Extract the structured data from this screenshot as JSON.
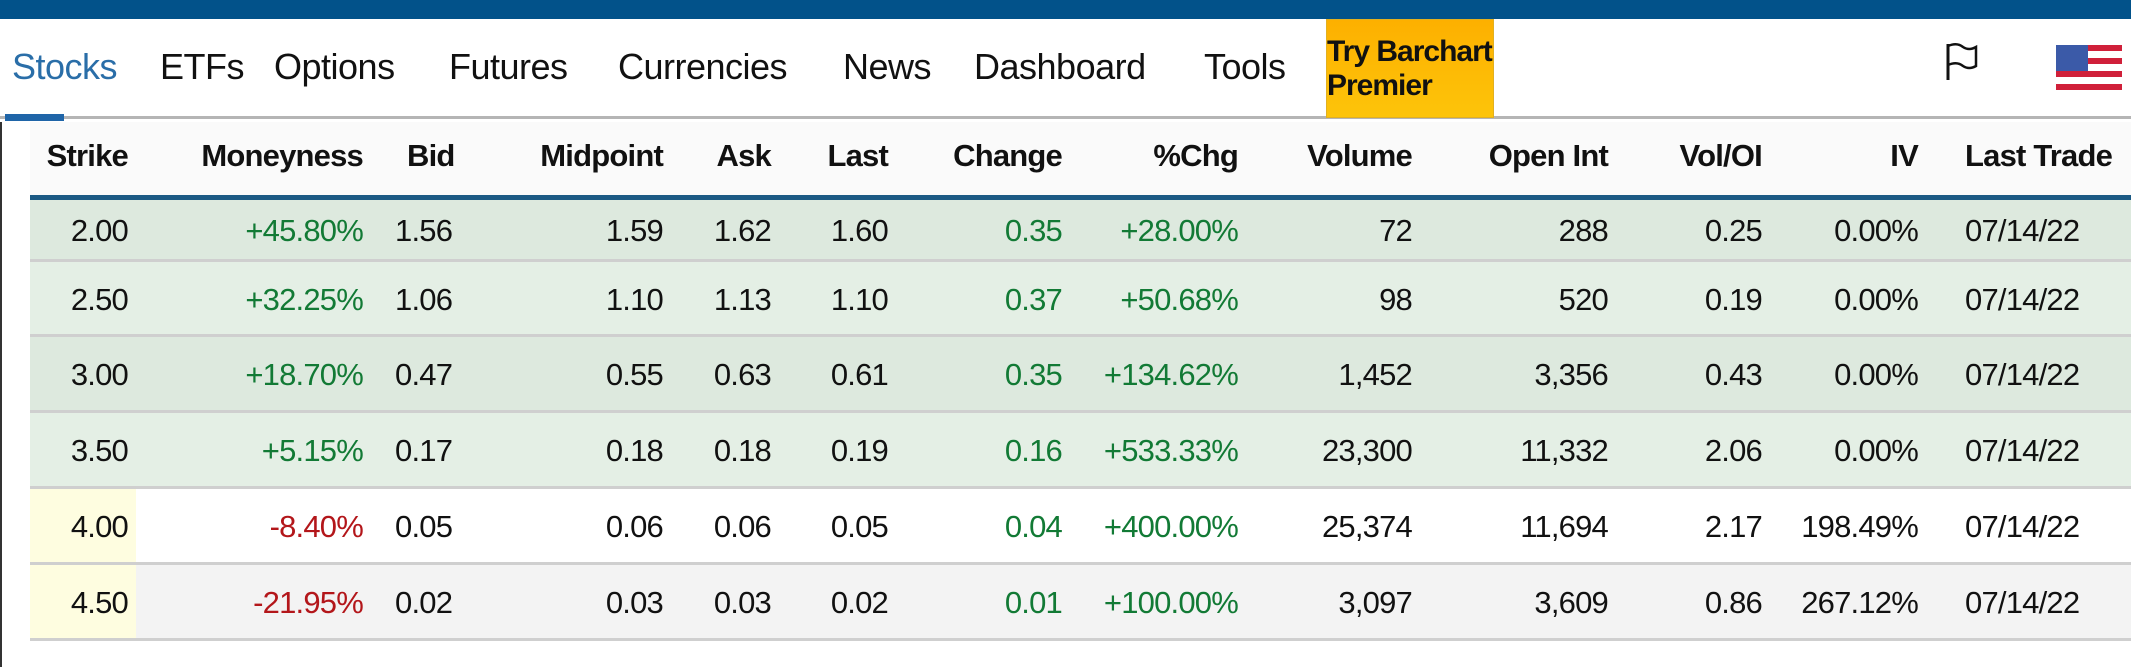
{
  "nav": {
    "items": [
      "Stocks",
      "ETFs",
      "Options",
      "Futures",
      "Currencies",
      "News",
      "Dashboard",
      "Tools"
    ],
    "active": "Stocks",
    "premium_label": "Try Barchart Premier"
  },
  "icons": {
    "flag": "flag-icon",
    "language": "us-flag-icon"
  },
  "colors": {
    "topbar": "#02528a",
    "premium": "#fdb800",
    "positive": "#127a35",
    "negative": "#b3161a",
    "itm_row": "#dde9de",
    "itm_row_alt": "#e4efe5",
    "strike_otm": "#fefde0"
  },
  "table": {
    "headers": [
      "Strike",
      "Moneyness",
      "Bid",
      "Midpoint",
      "Ask",
      "Last",
      "Change",
      "%Chg",
      "Volume",
      "Open Int",
      "Vol/OI",
      "IV",
      "Last Trade"
    ],
    "rows": [
      [
        "2.00",
        "+45.80%",
        "1.56",
        "1.59",
        "1.62",
        "1.60",
        "0.35",
        "+28.00%",
        "72",
        "288",
        "0.25",
        "0.00%",
        "07/14/22"
      ],
      [
        "2.50",
        "+32.25%",
        "1.06",
        "1.10",
        "1.13",
        "1.10",
        "0.37",
        "+50.68%",
        "98",
        "520",
        "0.19",
        "0.00%",
        "07/14/22"
      ],
      [
        "3.00",
        "+18.70%",
        "0.47",
        "0.55",
        "0.63",
        "0.61",
        "0.35",
        "+134.62%",
        "1,452",
        "3,356",
        "0.43",
        "0.00%",
        "07/14/22"
      ],
      [
        "3.50",
        "+5.15%",
        "0.17",
        "0.18",
        "0.18",
        "0.19",
        "0.16",
        "+533.33%",
        "23,300",
        "11,332",
        "2.06",
        "0.00%",
        "07/14/22"
      ],
      [
        "4.00",
        "-8.40%",
        "0.05",
        "0.06",
        "0.06",
        "0.05",
        "0.04",
        "+400.00%",
        "25,374",
        "11,694",
        "2.17",
        "198.49%",
        "07/14/22"
      ],
      [
        "4.50",
        "-21.95%",
        "0.02",
        "0.03",
        "0.03",
        "0.02",
        "0.01",
        "+100.00%",
        "3,097",
        "3,609",
        "0.86",
        "267.12%",
        "07/14/22"
      ]
    ]
  }
}
